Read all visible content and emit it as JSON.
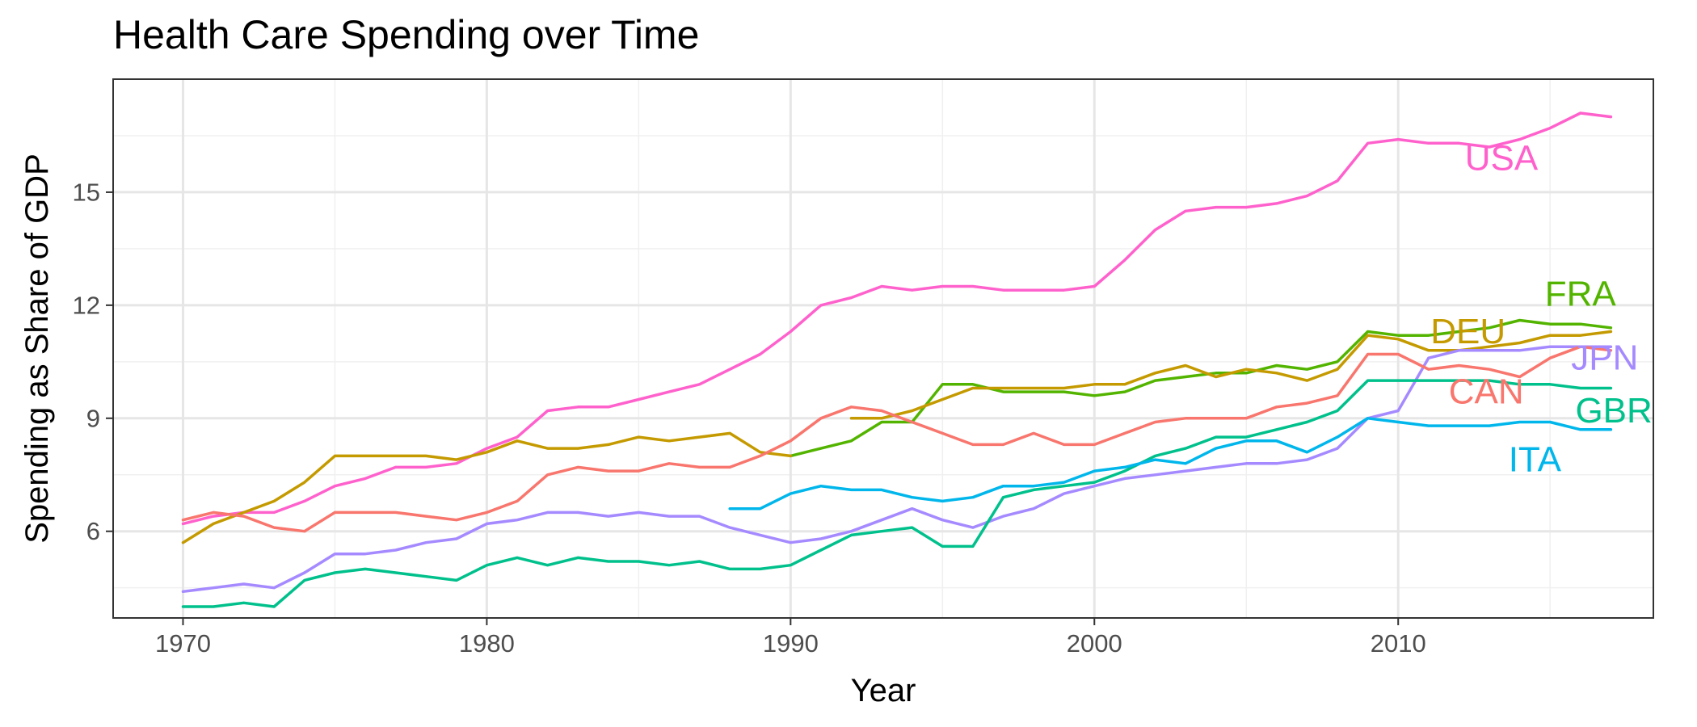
{
  "chart_data": {
    "type": "line",
    "title": "Health Care Spending over Time",
    "xlabel": "Year",
    "ylabel": "Spending as Share of GDP",
    "xlim": [
      1967.7,
      2018.4
    ],
    "ylim": [
      3.7,
      18.0
    ],
    "x_ticks": [
      1970,
      1980,
      1990,
      2000,
      2010
    ],
    "y_ticks": [
      6,
      9,
      12,
      15
    ],
    "grid": true,
    "legend": "direct labels at line ends",
    "series": [
      {
        "name": "USA",
        "color": "#FF61CC",
        "label_pos": [
          2013.4,
          15.9
        ],
        "points": [
          [
            1970,
            6.2
          ],
          [
            1971,
            6.4
          ],
          [
            1972,
            6.5
          ],
          [
            1973,
            6.5
          ],
          [
            1974,
            6.8
          ],
          [
            1975,
            7.2
          ],
          [
            1976,
            7.4
          ],
          [
            1977,
            7.7
          ],
          [
            1978,
            7.7
          ],
          [
            1979,
            7.8
          ],
          [
            1980,
            8.2
          ],
          [
            1981,
            8.5
          ],
          [
            1982,
            9.2
          ],
          [
            1983,
            9.3
          ],
          [
            1984,
            9.3
          ],
          [
            1985,
            9.5
          ],
          [
            1986,
            9.7
          ],
          [
            1987,
            9.9
          ],
          [
            1988,
            10.3
          ],
          [
            1989,
            10.7
          ],
          [
            1990,
            11.3
          ],
          [
            1991,
            12.0
          ],
          [
            1992,
            12.2
          ],
          [
            1993,
            12.5
          ],
          [
            1994,
            12.4
          ],
          [
            1995,
            12.5
          ],
          [
            1996,
            12.5
          ],
          [
            1997,
            12.4
          ],
          [
            1998,
            12.4
          ],
          [
            1999,
            12.4
          ],
          [
            2000,
            12.5
          ],
          [
            2001,
            13.2
          ],
          [
            2002,
            14.0
          ],
          [
            2003,
            14.5
          ],
          [
            2004,
            14.6
          ],
          [
            2005,
            14.6
          ],
          [
            2006,
            14.7
          ],
          [
            2007,
            14.9
          ],
          [
            2008,
            15.3
          ],
          [
            2009,
            16.3
          ],
          [
            2010,
            16.4
          ],
          [
            2011,
            16.3
          ],
          [
            2012,
            16.3
          ],
          [
            2013,
            16.2
          ],
          [
            2014,
            16.4
          ],
          [
            2015,
            16.7
          ],
          [
            2016,
            17.1
          ],
          [
            2017,
            17.0
          ]
        ]
      },
      {
        "name": "FRA",
        "color": "#53B400",
        "label_pos": [
          2016.0,
          12.3
        ],
        "points": [
          [
            1990,
            8.0
          ],
          [
            1991,
            8.2
          ],
          [
            1992,
            8.4
          ],
          [
            1993,
            8.9
          ],
          [
            1994,
            8.9
          ],
          [
            1995,
            9.9
          ],
          [
            1996,
            9.9
          ],
          [
            1997,
            9.7
          ],
          [
            1998,
            9.7
          ],
          [
            1999,
            9.7
          ],
          [
            2000,
            9.6
          ],
          [
            2001,
            9.7
          ],
          [
            2002,
            10.0
          ],
          [
            2003,
            10.1
          ],
          [
            2004,
            10.2
          ],
          [
            2005,
            10.2
          ],
          [
            2006,
            10.4
          ],
          [
            2007,
            10.3
          ],
          [
            2008,
            10.5
          ],
          [
            2009,
            11.3
          ],
          [
            2010,
            11.2
          ],
          [
            2011,
            11.2
          ],
          [
            2012,
            11.3
          ],
          [
            2013,
            11.4
          ],
          [
            2014,
            11.6
          ],
          [
            2015,
            11.5
          ],
          [
            2016,
            11.5
          ],
          [
            2017,
            11.4
          ]
        ]
      },
      {
        "name": "DEU",
        "color": "#C49A00",
        "label_pos": [
          2012.3,
          11.3
        ],
        "points": [
          [
            1970,
            5.7
          ],
          [
            1971,
            6.2
          ],
          [
            1972,
            6.5
          ],
          [
            1973,
            6.8
          ],
          [
            1974,
            7.3
          ],
          [
            1975,
            8.0
          ],
          [
            1976,
            8.0
          ],
          [
            1977,
            8.0
          ],
          [
            1978,
            8.0
          ],
          [
            1979,
            7.9
          ],
          [
            1980,
            8.1
          ],
          [
            1981,
            8.4
          ],
          [
            1982,
            8.2
          ],
          [
            1983,
            8.2
          ],
          [
            1984,
            8.3
          ],
          [
            1985,
            8.5
          ],
          [
            1986,
            8.4
          ],
          [
            1987,
            8.5
          ],
          [
            1988,
            8.6
          ],
          [
            1989,
            8.1
          ],
          [
            1990,
            8.0
          ],
          [
            1992,
            9.0
          ],
          [
            1993,
            9.0
          ],
          [
            1994,
            9.2
          ],
          [
            1995,
            9.5
          ],
          [
            1996,
            9.8
          ],
          [
            1997,
            9.8
          ],
          [
            1998,
            9.8
          ],
          [
            1999,
            9.8
          ],
          [
            2000,
            9.9
          ],
          [
            2001,
            9.9
          ],
          [
            2002,
            10.2
          ],
          [
            2003,
            10.4
          ],
          [
            2004,
            10.1
          ],
          [
            2005,
            10.3
          ],
          [
            2006,
            10.2
          ],
          [
            2007,
            10.0
          ],
          [
            2008,
            10.3
          ],
          [
            2009,
            11.2
          ],
          [
            2010,
            11.1
          ],
          [
            2011,
            10.8
          ],
          [
            2012,
            10.8
          ],
          [
            2013,
            10.9
          ],
          [
            2014,
            11.0
          ],
          [
            2015,
            11.2
          ],
          [
            2016,
            11.2
          ],
          [
            2017,
            11.3
          ]
        ]
      },
      {
        "name": "JPN",
        "color": "#A58AFF",
        "label_pos": [
          2016.8,
          10.6
        ],
        "points": [
          [
            1970,
            4.4
          ],
          [
            1971,
            4.5
          ],
          [
            1972,
            4.6
          ],
          [
            1973,
            4.5
          ],
          [
            1974,
            4.9
          ],
          [
            1975,
            5.4
          ],
          [
            1976,
            5.4
          ],
          [
            1977,
            5.5
          ],
          [
            1978,
            5.7
          ],
          [
            1979,
            5.8
          ],
          [
            1980,
            6.2
          ],
          [
            1981,
            6.3
          ],
          [
            1982,
            6.5
          ],
          [
            1983,
            6.5
          ],
          [
            1984,
            6.4
          ],
          [
            1985,
            6.5
          ],
          [
            1986,
            6.4
          ],
          [
            1987,
            6.4
          ],
          [
            1988,
            6.1
          ],
          [
            1989,
            5.9
          ],
          [
            1990,
            5.7
          ],
          [
            1991,
            5.8
          ],
          [
            1992,
            6.0
          ],
          [
            1993,
            6.3
          ],
          [
            1994,
            6.6
          ],
          [
            1995,
            6.3
          ],
          [
            1996,
            6.1
          ],
          [
            1997,
            6.4
          ],
          [
            1998,
            6.6
          ],
          [
            1999,
            7.0
          ],
          [
            2000,
            7.2
          ],
          [
            2001,
            7.4
          ],
          [
            2002,
            7.5
          ],
          [
            2003,
            7.6
          ],
          [
            2004,
            7.7
          ],
          [
            2005,
            7.8
          ],
          [
            2006,
            7.8
          ],
          [
            2007,
            7.9
          ],
          [
            2008,
            8.2
          ],
          [
            2009,
            9.0
          ],
          [
            2010,
            9.2
          ],
          [
            2011,
            10.6
          ],
          [
            2012,
            10.8
          ],
          [
            2013,
            10.8
          ],
          [
            2014,
            10.8
          ],
          [
            2015,
            10.9
          ],
          [
            2016,
            10.9
          ],
          [
            2017,
            10.9
          ]
        ]
      },
      {
        "name": "CAN",
        "color": "#F8766D",
        "label_pos": [
          2012.9,
          9.7
        ],
        "points": [
          [
            1970,
            6.3
          ],
          [
            1971,
            6.5
          ],
          [
            1972,
            6.4
          ],
          [
            1973,
            6.1
          ],
          [
            1974,
            6.0
          ],
          [
            1975,
            6.5
          ],
          [
            1976,
            6.5
          ],
          [
            1977,
            6.5
          ],
          [
            1978,
            6.4
          ],
          [
            1979,
            6.3
          ],
          [
            1980,
            6.5
          ],
          [
            1981,
            6.8
          ],
          [
            1982,
            7.5
          ],
          [
            1983,
            7.7
          ],
          [
            1984,
            7.6
          ],
          [
            1985,
            7.6
          ],
          [
            1986,
            7.8
          ],
          [
            1987,
            7.7
          ],
          [
            1988,
            7.7
          ],
          [
            1989,
            8.0
          ],
          [
            1990,
            8.4
          ],
          [
            1991,
            9.0
          ],
          [
            1992,
            9.3
          ],
          [
            1993,
            9.2
          ],
          [
            1994,
            8.9
          ],
          [
            1995,
            8.6
          ],
          [
            1996,
            8.3
          ],
          [
            1997,
            8.3
          ],
          [
            1998,
            8.6
          ],
          [
            1999,
            8.3
          ],
          [
            2000,
            8.3
          ],
          [
            2001,
            8.6
          ],
          [
            2002,
            8.9
          ],
          [
            2003,
            9.0
          ],
          [
            2004,
            9.0
          ],
          [
            2005,
            9.0
          ],
          [
            2006,
            9.3
          ],
          [
            2007,
            9.4
          ],
          [
            2008,
            9.6
          ],
          [
            2009,
            10.7
          ],
          [
            2010,
            10.7
          ],
          [
            2011,
            10.3
          ],
          [
            2012,
            10.4
          ],
          [
            2013,
            10.3
          ],
          [
            2014,
            10.1
          ],
          [
            2015,
            10.6
          ],
          [
            2016,
            10.9
          ],
          [
            2017,
            10.8
          ]
        ]
      },
      {
        "name": "GBR",
        "color": "#00C08B",
        "label_pos": [
          2017.1,
          9.2
        ],
        "points": [
          [
            1970,
            4.0
          ],
          [
            1971,
            4.0
          ],
          [
            1972,
            4.1
          ],
          [
            1973,
            4.0
          ],
          [
            1974,
            4.7
          ],
          [
            1975,
            4.9
          ],
          [
            1976,
            5.0
          ],
          [
            1977,
            4.9
          ],
          [
            1978,
            4.8
          ],
          [
            1979,
            4.7
          ],
          [
            1980,
            5.1
          ],
          [
            1981,
            5.3
          ],
          [
            1982,
            5.1
          ],
          [
            1983,
            5.3
          ],
          [
            1984,
            5.2
          ],
          [
            1985,
            5.2
          ],
          [
            1986,
            5.1
          ],
          [
            1987,
            5.2
          ],
          [
            1988,
            5.0
          ],
          [
            1989,
            5.0
          ],
          [
            1990,
            5.1
          ],
          [
            1991,
            5.5
          ],
          [
            1992,
            5.9
          ],
          [
            1993,
            6.0
          ],
          [
            1994,
            6.1
          ],
          [
            1995,
            5.6
          ],
          [
            1996,
            5.6
          ],
          [
            1997,
            6.9
          ],
          [
            1998,
            7.1
          ],
          [
            1999,
            7.2
          ],
          [
            2000,
            7.3
          ],
          [
            2001,
            7.6
          ],
          [
            2002,
            8.0
          ],
          [
            2003,
            8.2
          ],
          [
            2004,
            8.5
          ],
          [
            2005,
            8.5
          ],
          [
            2006,
            8.7
          ],
          [
            2007,
            8.9
          ],
          [
            2008,
            9.2
          ],
          [
            2009,
            10.0
          ],
          [
            2010,
            10.0
          ],
          [
            2011,
            10.0
          ],
          [
            2012,
            10.0
          ],
          [
            2013,
            10.0
          ],
          [
            2014,
            9.9
          ],
          [
            2015,
            9.9
          ],
          [
            2016,
            9.8
          ],
          [
            2017,
            9.8
          ]
        ]
      },
      {
        "name": "ITA",
        "color": "#00B6EB",
        "label_pos": [
          2014.5,
          7.9
        ],
        "points": [
          [
            1988,
            6.6
          ],
          [
            1989,
            6.6
          ],
          [
            1990,
            7.0
          ],
          [
            1991,
            7.2
          ],
          [
            1992,
            7.1
          ],
          [
            1993,
            7.1
          ],
          [
            1994,
            6.9
          ],
          [
            1995,
            6.8
          ],
          [
            1996,
            6.9
          ],
          [
            1997,
            7.2
          ],
          [
            1998,
            7.2
          ],
          [
            1999,
            7.3
          ],
          [
            2000,
            7.6
          ],
          [
            2001,
            7.7
          ],
          [
            2002,
            7.9
          ],
          [
            2003,
            7.8
          ],
          [
            2004,
            8.2
          ],
          [
            2005,
            8.4
          ],
          [
            2006,
            8.4
          ],
          [
            2007,
            8.1
          ],
          [
            2008,
            8.5
          ],
          [
            2009,
            9.0
          ],
          [
            2010,
            8.9
          ],
          [
            2011,
            8.8
          ],
          [
            2012,
            8.8
          ],
          [
            2013,
            8.8
          ],
          [
            2014,
            8.9
          ],
          [
            2015,
            8.9
          ],
          [
            2016,
            8.7
          ],
          [
            2017,
            8.7
          ]
        ]
      }
    ]
  }
}
